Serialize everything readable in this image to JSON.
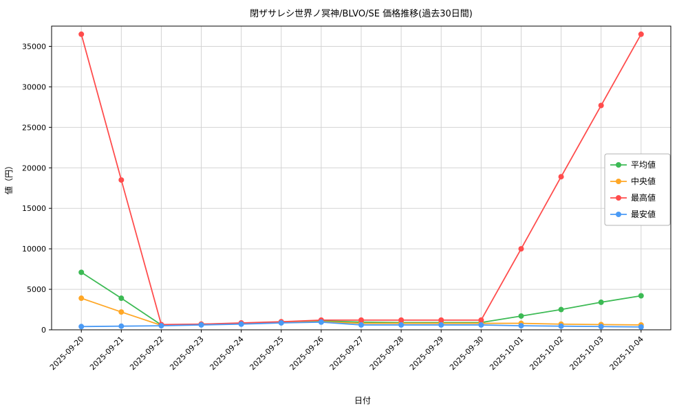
{
  "chart_data": {
    "type": "line",
    "title": "閉ザサレシ世界ノ冥神/BLVO/SE 価格推移(過去30日間)",
    "xlabel": "日付",
    "ylabel": "値（円）",
    "ylim": [
      0,
      37500
    ],
    "yticks": [
      0,
      5000,
      10000,
      15000,
      20000,
      25000,
      30000,
      35000
    ],
    "grid": true,
    "legend_position": "right",
    "categories": [
      "2025-09-20",
      "2025-09-21",
      "2025-09-22",
      "2025-09-23",
      "2025-09-24",
      "2025-09-25",
      "2025-09-26",
      "2025-09-27",
      "2025-09-28",
      "2025-09-29",
      "2025-09-30",
      "2025-10-01",
      "2025-10-02",
      "2025-10-03",
      "2025-10-04"
    ],
    "series": [
      {
        "name": "平均値",
        "color": "#3cba54",
        "values": [
          7100,
          3900,
          600,
          700,
          800,
          950,
          1100,
          950,
          900,
          900,
          900,
          1700,
          2500,
          3400,
          4200
        ]
      },
      {
        "name": "中央値",
        "color": "#ffa726",
        "values": [
          3900,
          2200,
          550,
          650,
          750,
          900,
          1000,
          800,
          800,
          800,
          800,
          800,
          700,
          650,
          600
        ]
      },
      {
        "name": "最高値",
        "color": "#ff4c4c",
        "values": [
          36500,
          18500,
          650,
          700,
          850,
          1000,
          1200,
          1200,
          1200,
          1200,
          1200,
          10000,
          18900,
          27700,
          36500
        ]
      },
      {
        "name": "最安値",
        "color": "#4a9af5",
        "values": [
          400,
          450,
          500,
          600,
          700,
          850,
          950,
          600,
          600,
          600,
          600,
          500,
          450,
          400,
          350
        ]
      }
    ]
  }
}
